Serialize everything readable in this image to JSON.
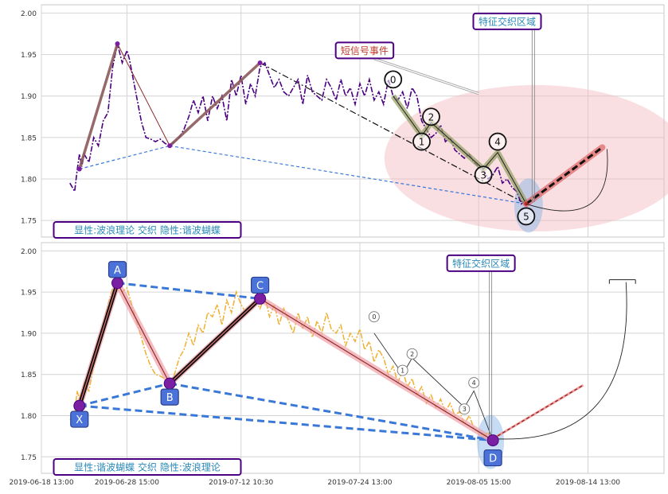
{
  "chart_data": [
    {
      "type": "line",
      "ylim": [
        1.73,
        2.01
      ],
      "yticks": [
        1.75,
        1.8,
        1.85,
        1.9,
        1.95,
        2.0
      ],
      "ytick_labels": [
        "1.75",
        "1.80",
        "1.85",
        "1.90",
        "1.95",
        "2.00"
      ],
      "grid": true,
      "price_series": [
        [
          0,
          1.795
        ],
        [
          1,
          1.785
        ],
        [
          1.5,
          1.81
        ],
        [
          2,
          1.83
        ],
        [
          2.5,
          1.815
        ],
        [
          3,
          1.83
        ],
        [
          4,
          1.82
        ],
        [
          5,
          1.85
        ],
        [
          6,
          1.84
        ],
        [
          7,
          1.87
        ],
        [
          8,
          1.88
        ],
        [
          9,
          1.935
        ],
        [
          10,
          1.963
        ],
        [
          11,
          1.94
        ],
        [
          12,
          1.955
        ],
        [
          12.5,
          1.945
        ],
        [
          13,
          1.93
        ],
        [
          14,
          1.9
        ],
        [
          15,
          1.87
        ],
        [
          16,
          1.85
        ],
        [
          17,
          1.848
        ],
        [
          18,
          1.845
        ],
        [
          19,
          1.848
        ],
        [
          20,
          1.843
        ],
        [
          21,
          1.84
        ],
        [
          22,
          1.845
        ],
        [
          23,
          1.85
        ],
        [
          24,
          1.86
        ],
        [
          25,
          1.875
        ],
        [
          26,
          1.895
        ],
        [
          27,
          1.88
        ],
        [
          28,
          1.9
        ],
        [
          29,
          1.87
        ],
        [
          30,
          1.9
        ],
        [
          31,
          1.885
        ],
        [
          32,
          1.9
        ],
        [
          33,
          1.87
        ],
        [
          34,
          1.92
        ],
        [
          35,
          1.9
        ],
        [
          36,
          1.925
        ],
        [
          37,
          1.89
        ],
        [
          38,
          1.915
        ],
        [
          39,
          1.9
        ],
        [
          40,
          1.935
        ],
        [
          41,
          1.94
        ],
        [
          42,
          1.925
        ],
        [
          43,
          1.91
        ],
        [
          44,
          1.92
        ],
        [
          45,
          1.905
        ],
        [
          46,
          1.9
        ],
        [
          47,
          1.91
        ],
        [
          48,
          1.92
        ],
        [
          49,
          1.89
        ],
        [
          50,
          1.925
        ],
        [
          51,
          1.905
        ],
        [
          52,
          1.9
        ],
        [
          53,
          1.895
        ],
        [
          54,
          1.92
        ],
        [
          55,
          1.91
        ],
        [
          56,
          1.895
        ],
        [
          57,
          1.92
        ],
        [
          58,
          1.9
        ],
        [
          59,
          1.91
        ],
        [
          60,
          1.89
        ],
        [
          61,
          1.915
        ],
        [
          62,
          1.9
        ],
        [
          63,
          1.92
        ],
        [
          64,
          1.895
        ],
        [
          65,
          1.905
        ],
        [
          66,
          1.89
        ],
        [
          67,
          1.92
        ],
        [
          68,
          1.9
        ],
        [
          69,
          1.895
        ],
        [
          70,
          1.905
        ],
        [
          71,
          1.885
        ],
        [
          72,
          1.91
        ],
        [
          73,
          1.9
        ],
        [
          74,
          1.87
        ],
        [
          75,
          1.86
        ],
        [
          76,
          1.85
        ],
        [
          77,
          1.855
        ],
        [
          78,
          1.865
        ],
        [
          79,
          1.845
        ],
        [
          80,
          1.85
        ],
        [
          81,
          1.835
        ],
        [
          82,
          1.83
        ],
        [
          83,
          1.825
        ],
        [
          84,
          1.83
        ],
        [
          85,
          1.82
        ],
        [
          86,
          1.815
        ],
        [
          87,
          1.81
        ],
        [
          88,
          1.8
        ],
        [
          89,
          1.805
        ],
        [
          90,
          1.815
        ],
        [
          91,
          1.795
        ],
        [
          92,
          1.8
        ],
        [
          93,
          1.79
        ],
        [
          94,
          1.785
        ],
        [
          95,
          1.77
        ],
        [
          96,
          1.775
        ]
      ],
      "main_zigzag": [
        [
          2,
          1.812
        ],
        [
          10,
          1.963
        ],
        [
          21,
          1.84
        ],
        [
          40,
          1.94
        ],
        [
          96,
          1.77
        ]
      ],
      "minor_lines": [
        {
          "from": [
            10,
            1.963
          ],
          "to": [
            21,
            1.84
          ]
        },
        {
          "from": [
            2,
            1.812
          ],
          "to": [
            21,
            1.84
          ]
        },
        {
          "from": [
            21,
            1.84
          ],
          "to": [
            96,
            1.77
          ]
        }
      ],
      "wave_points": [
        {
          "label": "0",
          "x": 68,
          "y": 1.92
        },
        {
          "label": "1",
          "x": 74,
          "y": 1.845
        },
        {
          "label": "2",
          "x": 76,
          "y": 1.875
        },
        {
          "label": "3",
          "x": 87,
          "y": 1.805
        },
        {
          "label": "4",
          "x": 90,
          "y": 1.845
        },
        {
          "label": "5",
          "x": 96,
          "y": 1.755
        }
      ],
      "wave_path": [
        [
          68,
          1.9
        ],
        [
          74,
          1.852
        ],
        [
          76,
          1.868
        ],
        [
          87,
          1.812
        ],
        [
          90,
          1.832
        ],
        [
          96,
          1.77
        ]
      ],
      "projection": {
        "from": [
          96,
          1.77
        ],
        "to": [
          112,
          1.838
        ]
      },
      "annotations": [
        {
          "text": "特征交织区域",
          "x": 92,
          "y": 1.99
        },
        {
          "text": "短信号事件",
          "x": 62,
          "y": 1.955
        }
      ],
      "panel_label": "显性:波浪理论 交织 隐性:谐波蝴蝶"
    },
    {
      "type": "line",
      "ylim": [
        1.73,
        2.01
      ],
      "yticks": [
        1.75,
        1.8,
        1.85,
        1.9,
        1.95,
        2.0
      ],
      "ytick_labels": [
        "1.75",
        "1.80",
        "1.85",
        "1.90",
        "1.95",
        "2.00"
      ],
      "grid": true,
      "xtick_labels": [
        "2019-06-18 13:00",
        "2019-06-28 15:00",
        "2019-07-12 10:30",
        "2019-07-24 13:00",
        "2019-08-05 15:00",
        "2019-08-14 13:00"
      ],
      "price_series": [
        [
          0,
          1.795
        ],
        [
          1,
          1.8
        ],
        [
          1.5,
          1.83
        ],
        [
          2,
          1.82
        ],
        [
          3,
          1.84
        ],
        [
          4,
          1.83
        ],
        [
          5,
          1.86
        ],
        [
          6,
          1.88
        ],
        [
          7,
          1.91
        ],
        [
          8,
          1.935
        ],
        [
          9,
          1.955
        ],
        [
          10,
          1.96
        ],
        [
          11,
          1.95
        ],
        [
          12,
          1.955
        ],
        [
          13,
          1.935
        ],
        [
          14,
          1.915
        ],
        [
          15,
          1.895
        ],
        [
          16,
          1.875
        ],
        [
          17,
          1.86
        ],
        [
          18,
          1.85
        ],
        [
          19,
          1.848
        ],
        [
          20,
          1.845
        ],
        [
          21,
          1.84
        ],
        [
          22,
          1.85
        ],
        [
          23,
          1.87
        ],
        [
          24,
          1.88
        ],
        [
          25,
          1.9
        ],
        [
          26,
          1.885
        ],
        [
          27,
          1.91
        ],
        [
          28,
          1.9
        ],
        [
          29,
          1.925
        ],
        [
          30,
          1.92
        ],
        [
          31,
          1.935
        ],
        [
          32,
          1.91
        ],
        [
          33,
          1.94
        ],
        [
          34,
          1.925
        ],
        [
          35,
          1.95
        ],
        [
          36,
          1.935
        ],
        [
          37,
          1.925
        ],
        [
          38,
          1.93
        ],
        [
          39,
          1.94
        ],
        [
          40,
          1.93
        ],
        [
          41,
          1.945
        ],
        [
          42,
          1.92
        ],
        [
          43,
          1.935
        ],
        [
          44,
          1.91
        ],
        [
          45,
          1.93
        ],
        [
          46,
          1.915
        ],
        [
          47,
          1.9
        ],
        [
          48,
          1.925
        ],
        [
          49,
          1.905
        ],
        [
          50,
          1.92
        ],
        [
          51,
          1.895
        ],
        [
          52,
          1.915
        ],
        [
          53,
          1.9
        ],
        [
          54,
          1.925
        ],
        [
          55,
          1.905
        ],
        [
          56,
          1.9
        ],
        [
          57,
          1.91
        ],
        [
          58,
          1.885
        ],
        [
          59,
          1.9
        ],
        [
          60,
          1.89
        ],
        [
          61,
          1.905
        ],
        [
          62,
          1.88
        ],
        [
          63,
          1.89
        ],
        [
          64,
          1.865
        ],
        [
          65,
          1.88
        ],
        [
          66,
          1.87
        ],
        [
          67,
          1.85
        ],
        [
          68,
          1.86
        ],
        [
          69,
          1.84
        ],
        [
          70,
          1.855
        ],
        [
          71,
          1.835
        ],
        [
          72,
          1.845
        ],
        [
          73,
          1.825
        ],
        [
          74,
          1.835
        ],
        [
          75,
          1.815
        ],
        [
          76,
          1.825
        ],
        [
          77,
          1.81
        ],
        [
          78,
          1.82
        ],
        [
          79,
          1.805
        ],
        [
          80,
          1.815
        ],
        [
          81,
          1.8
        ],
        [
          82,
          1.805
        ],
        [
          83,
          1.79
        ],
        [
          84,
          1.8
        ],
        [
          85,
          1.785
        ],
        [
          86,
          1.78
        ],
        [
          87,
          1.775
        ],
        [
          88,
          1.78
        ],
        [
          89,
          1.772
        ]
      ],
      "xabcd_points": [
        {
          "label": "X",
          "x": 2,
          "y": 1.812
        },
        {
          "label": "A",
          "x": 10,
          "y": 1.961
        },
        {
          "label": "B",
          "x": 21,
          "y": 1.839
        },
        {
          "label": "C",
          "x": 40,
          "y": 1.942
        },
        {
          "label": "D",
          "x": 89,
          "y": 1.77
        }
      ],
      "wave_points": [
        {
          "label": "0",
          "x": 64,
          "y": 1.92
        },
        {
          "label": "1",
          "x": 70,
          "y": 1.855
        },
        {
          "label": "2",
          "x": 72,
          "y": 1.875
        },
        {
          "label": "3",
          "x": 83,
          "y": 1.808
        },
        {
          "label": "4",
          "x": 85,
          "y": 1.84
        }
      ],
      "wave_path": [
        [
          64,
          1.9
        ],
        [
          70,
          1.85
        ],
        [
          72,
          1.87
        ],
        [
          83,
          1.81
        ],
        [
          85,
          1.83
        ],
        [
          89,
          1.77
        ]
      ],
      "projection": {
        "from": [
          89,
          1.772
        ],
        "to": [
          108,
          1.837
        ]
      },
      "annotations": [
        {
          "text": "特征交织区域",
          "x": 88,
          "y": 1.985
        }
      ],
      "panel_label": "显性:谐波蝴蝶 交织 隐性:波浪理论"
    }
  ],
  "colors": {
    "purple": "#4b0082",
    "orange": "#f0b030",
    "blue_dash": "#3a78d8",
    "bear_line": "#8b5a5a",
    "pink_zone": "#f4b8bf",
    "wave_fill": "#9aa36a",
    "label_text": "#2a8ab8",
    "label_border": "#4b0082",
    "short_signal": "#c0392b",
    "node_fill": "#4a72d8"
  }
}
